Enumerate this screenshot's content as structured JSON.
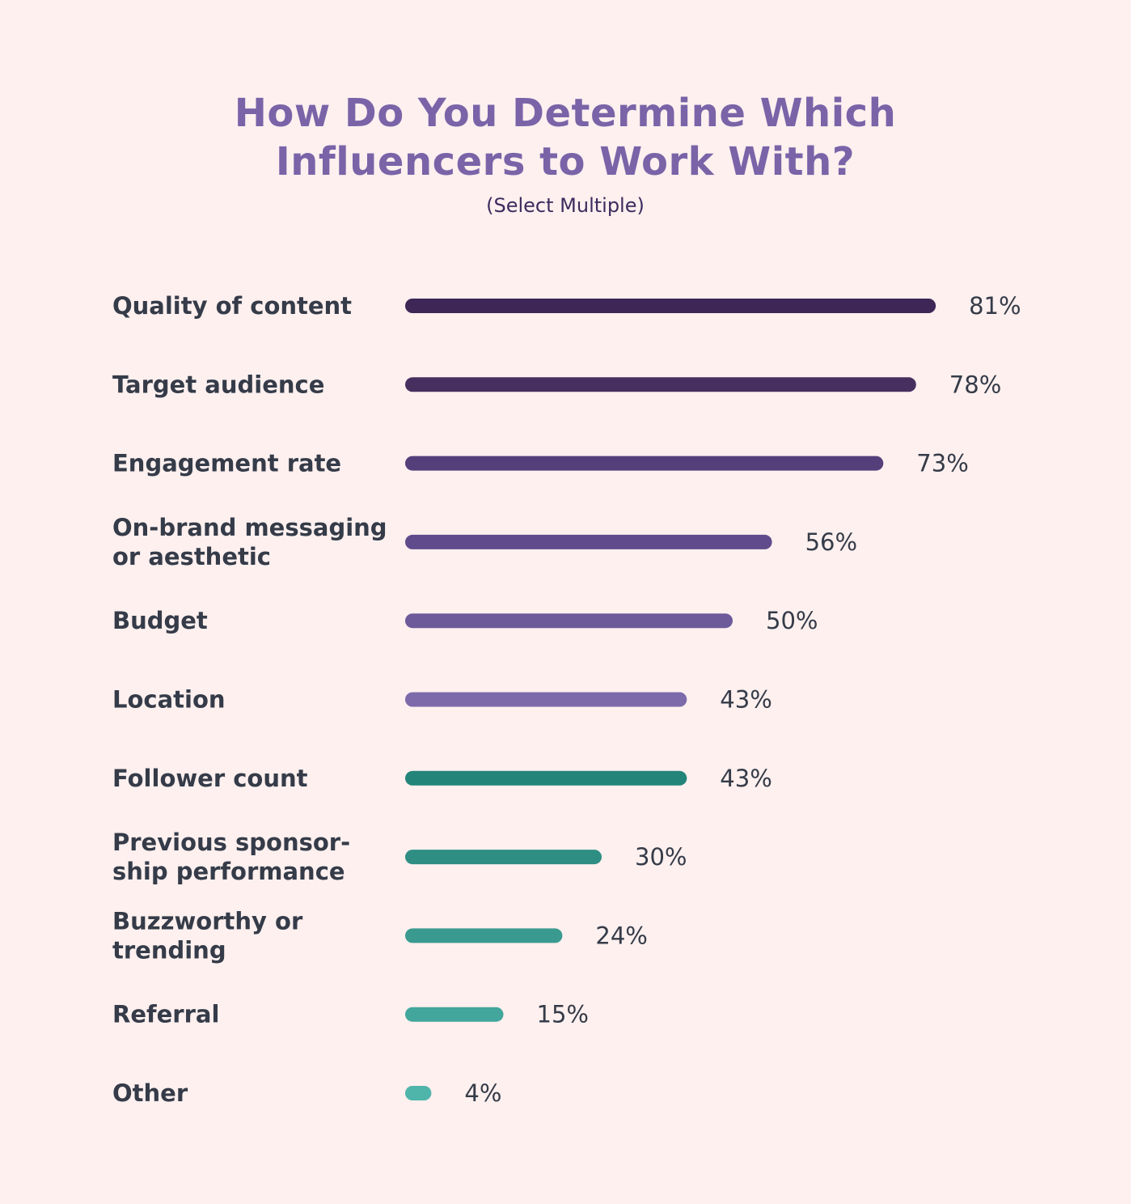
{
  "chart_data": {
    "type": "bar",
    "orientation": "horizontal",
    "title_lines": [
      "How Do You Determine Which",
      "Influencers to Work With?"
    ],
    "subtitle": "(Select Multiple)",
    "categories": [
      [
        "Quality of content"
      ],
      [
        "Target audience"
      ],
      [
        "Engagement rate"
      ],
      [
        "On-brand messaging",
        "or aesthetic"
      ],
      [
        "Budget"
      ],
      [
        "Location"
      ],
      [
        "Follower count"
      ],
      [
        "Previous sponsor-",
        "ship performance"
      ],
      [
        "Buzzworthy or",
        "trending"
      ],
      [
        "Referral"
      ],
      [
        "Other"
      ]
    ],
    "values": [
      81,
      78,
      73,
      56,
      50,
      43,
      43,
      30,
      24,
      15,
      4
    ],
    "value_labels": [
      "81%",
      "78%",
      "73%",
      "56%",
      "50%",
      "43%",
      "43%",
      "30%",
      "24%",
      "15%",
      "4%"
    ],
    "colors": [
      "#3e2656",
      "#47305f",
      "#553f7b",
      "#604b8c",
      "#6d5a9b",
      "#7c6aab",
      "#238479",
      "#2f8e84",
      "#3a9a90",
      "#43a69c",
      "#4fb4aa"
    ],
    "xlim": [
      0,
      100
    ],
    "grid": false,
    "legend": "none"
  }
}
